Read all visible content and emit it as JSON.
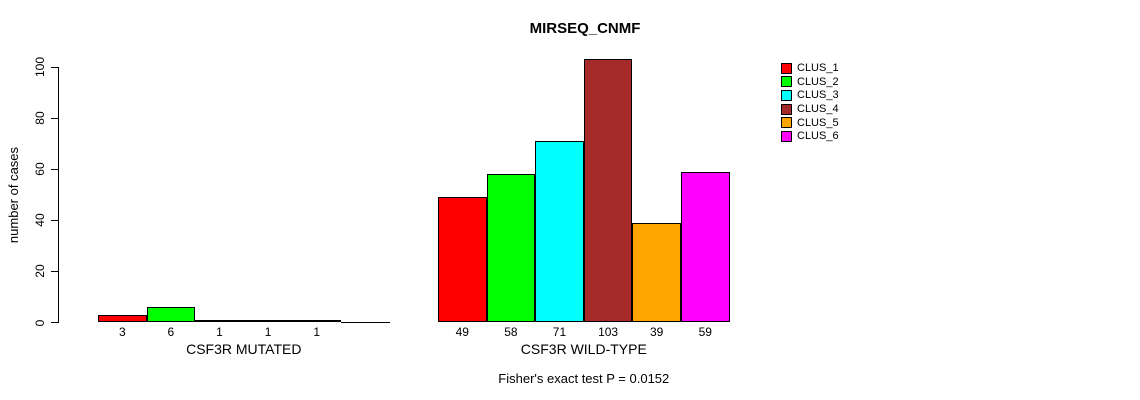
{
  "chart_data": {
    "type": "bar",
    "title": "MIRSEQ_CNMF",
    "ylabel": "number of cases",
    "xlabel": "",
    "ylim": [
      0,
      100
    ],
    "yticks": [
      0,
      20,
      40,
      60,
      80,
      100
    ],
    "grid": false,
    "legend_position": "top-right",
    "categories": [
      "CSF3R MUTATED",
      "CSF3R WILD-TYPE"
    ],
    "series": [
      {
        "name": "CLUS_1",
        "color": "#FF0000",
        "values": [
          3,
          49
        ]
      },
      {
        "name": "CLUS_2",
        "color": "#00FF00",
        "values": [
          6,
          58
        ]
      },
      {
        "name": "CLUS_3",
        "color": "#00FFFF",
        "values": [
          1,
          71
        ]
      },
      {
        "name": "CLUS_4",
        "color": "#A52A2A",
        "values": [
          1,
          103
        ]
      },
      {
        "name": "CLUS_5",
        "color": "#FFA500",
        "values": [
          1,
          39
        ]
      },
      {
        "name": "CLUS_6",
        "color": "#FF00FF",
        "values": [
          0,
          59
        ]
      }
    ],
    "bar_value_labels_shown": true,
    "annotation": "Fisher's exact test P = 0.0152",
    "axis_color": "#000000",
    "bar_border_color": "#000000"
  }
}
